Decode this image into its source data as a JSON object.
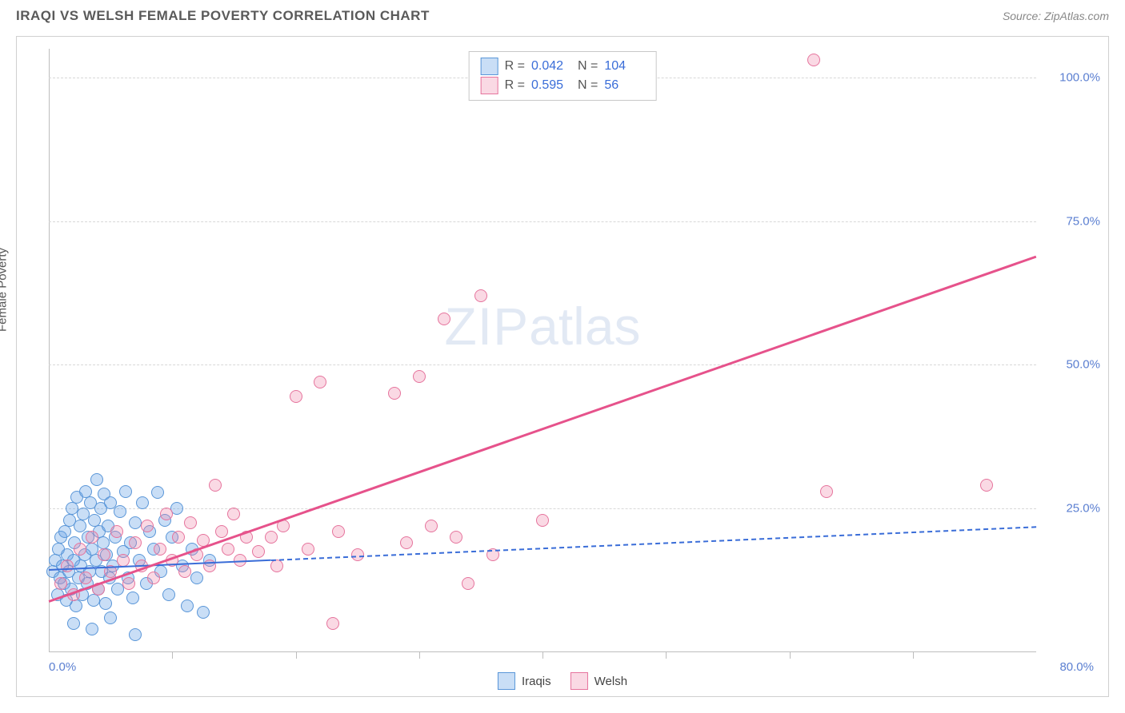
{
  "header": {
    "title": "IRAQI VS WELSH FEMALE POVERTY CORRELATION CHART",
    "source": "Source: ZipAtlas.com"
  },
  "watermark": {
    "zip": "ZIP",
    "atlas": "atlas"
  },
  "chart": {
    "type": "scatter",
    "ylabel": "Female Poverty",
    "xlim": [
      0,
      80
    ],
    "ylim": [
      0,
      105
    ],
    "xtick_step": 10,
    "yticks": [
      25,
      50,
      75,
      100
    ],
    "ytick_labels": [
      "25.0%",
      "50.0%",
      "75.0%",
      "100.0%"
    ],
    "xtick_label_min": "0.0%",
    "xtick_label_max": "80.0%",
    "background_color": "#ffffff",
    "grid_color": "#d8d8d8",
    "axis_color": "#bdbdbd",
    "tick_label_color": "#5b7fd1",
    "marker_radius": 7,
    "marker_opacity_fill": 0.35,
    "series": [
      {
        "name": "Iraqis",
        "color_fill": "rgba(100,160,230,0.35)",
        "color_stroke": "#5a96d8",
        "R": "0.042",
        "N": "104",
        "regression": {
          "x1": 0,
          "y1": 14.5,
          "x2": 18,
          "y2": 16.2,
          "color": "#3a6dd8",
          "width": 2,
          "solid": true,
          "ext_x2": 80,
          "ext_y2": 22.0
        },
        "points": [
          [
            0.3,
            14
          ],
          [
            0.5,
            16
          ],
          [
            0.7,
            10
          ],
          [
            0.8,
            18
          ],
          [
            0.9,
            13
          ],
          [
            1.0,
            20
          ],
          [
            1.1,
            15
          ],
          [
            1.2,
            12
          ],
          [
            1.3,
            21
          ],
          [
            1.4,
            9
          ],
          [
            1.5,
            17
          ],
          [
            1.6,
            14
          ],
          [
            1.7,
            23
          ],
          [
            1.8,
            11
          ],
          [
            1.9,
            25
          ],
          [
            2.0,
            16
          ],
          [
            2.1,
            19
          ],
          [
            2.2,
            8
          ],
          [
            2.3,
            27
          ],
          [
            2.4,
            13
          ],
          [
            2.5,
            22
          ],
          [
            2.6,
            15
          ],
          [
            2.7,
            10
          ],
          [
            2.8,
            24
          ],
          [
            2.9,
            17
          ],
          [
            3.0,
            28
          ],
          [
            3.1,
            12
          ],
          [
            3.2,
            20
          ],
          [
            3.3,
            14
          ],
          [
            3.4,
            26
          ],
          [
            3.5,
            18
          ],
          [
            3.6,
            9
          ],
          [
            3.7,
            23
          ],
          [
            3.8,
            16
          ],
          [
            3.9,
            30
          ],
          [
            4.0,
            11
          ],
          [
            4.1,
            21
          ],
          [
            4.2,
            25
          ],
          [
            4.3,
            14
          ],
          [
            4.4,
            19
          ],
          [
            4.5,
            27.5
          ],
          [
            4.6,
            8.5
          ],
          [
            4.7,
            17
          ],
          [
            4.8,
            22
          ],
          [
            4.9,
            13
          ],
          [
            5.0,
            26
          ],
          [
            5.2,
            15
          ],
          [
            5.4,
            20
          ],
          [
            5.6,
            11
          ],
          [
            5.8,
            24.5
          ],
          [
            6.0,
            17.5
          ],
          [
            6.2,
            28
          ],
          [
            6.4,
            13
          ],
          [
            6.6,
            19
          ],
          [
            6.8,
            9.5
          ],
          [
            7.0,
            22.5
          ],
          [
            7.3,
            16
          ],
          [
            7.6,
            26
          ],
          [
            7.9,
            12
          ],
          [
            8.2,
            21
          ],
          [
            8.5,
            18
          ],
          [
            8.8,
            27.8
          ],
          [
            9.1,
            14
          ],
          [
            9.4,
            23
          ],
          [
            9.7,
            10
          ],
          [
            10.0,
            20
          ],
          [
            10.4,
            25
          ],
          [
            10.8,
            15
          ],
          [
            11.2,
            8
          ],
          [
            11.6,
            18
          ],
          [
            12.0,
            13
          ],
          [
            12.5,
            7
          ],
          [
            13.0,
            16
          ],
          [
            2.0,
            5
          ],
          [
            3.5,
            4
          ],
          [
            5.0,
            6
          ],
          [
            7.0,
            3
          ]
        ]
      },
      {
        "name": "Welsh",
        "color_fill": "rgba(240,130,165,0.30)",
        "color_stroke": "#e6749d",
        "R": "0.595",
        "N": "56",
        "regression": {
          "x1": 0,
          "y1": 9,
          "x2": 80,
          "y2": 69,
          "color": "#e6528b",
          "width": 2.5,
          "solid": true
        },
        "points": [
          [
            1.0,
            12
          ],
          [
            1.5,
            15
          ],
          [
            2.0,
            10
          ],
          [
            2.5,
            18
          ],
          [
            3.0,
            13
          ],
          [
            3.5,
            20
          ],
          [
            4.0,
            11
          ],
          [
            4.5,
            17
          ],
          [
            5.0,
            14
          ],
          [
            5.5,
            21
          ],
          [
            6.0,
            16
          ],
          [
            6.5,
            12
          ],
          [
            7.0,
            19
          ],
          [
            7.5,
            15
          ],
          [
            8.0,
            22
          ],
          [
            8.5,
            13
          ],
          [
            9.0,
            18
          ],
          [
            9.5,
            24
          ],
          [
            10.0,
            16
          ],
          [
            10.5,
            20
          ],
          [
            11.0,
            14
          ],
          [
            11.5,
            22.5
          ],
          [
            12.0,
            17
          ],
          [
            12.5,
            19.5
          ],
          [
            13.0,
            15
          ],
          [
            13.5,
            29
          ],
          [
            14.0,
            21
          ],
          [
            14.5,
            18
          ],
          [
            15.0,
            24
          ],
          [
            15.5,
            16
          ],
          [
            16.0,
            20
          ],
          [
            17.0,
            17.5
          ],
          [
            18.0,
            20
          ],
          [
            18.5,
            15
          ],
          [
            19.0,
            22
          ],
          [
            20.0,
            44.5
          ],
          [
            21.0,
            18
          ],
          [
            22,
            47
          ],
          [
            23.0,
            5
          ],
          [
            23.5,
            21
          ],
          [
            25.0,
            17
          ],
          [
            28.0,
            45
          ],
          [
            29.0,
            19
          ],
          [
            30.0,
            48
          ],
          [
            31.0,
            22
          ],
          [
            32.0,
            58
          ],
          [
            33.0,
            20
          ],
          [
            34.0,
            12
          ],
          [
            35.0,
            62
          ],
          [
            36.0,
            17
          ],
          [
            40.0,
            23
          ],
          [
            62.0,
            103
          ],
          [
            63.0,
            28
          ],
          [
            76.0,
            29
          ]
        ]
      }
    ],
    "legend_top": {
      "R_label": "R =",
      "N_label": "N ="
    },
    "legend_bottom": {
      "label1": "Iraqis",
      "label2": "Welsh"
    }
  }
}
